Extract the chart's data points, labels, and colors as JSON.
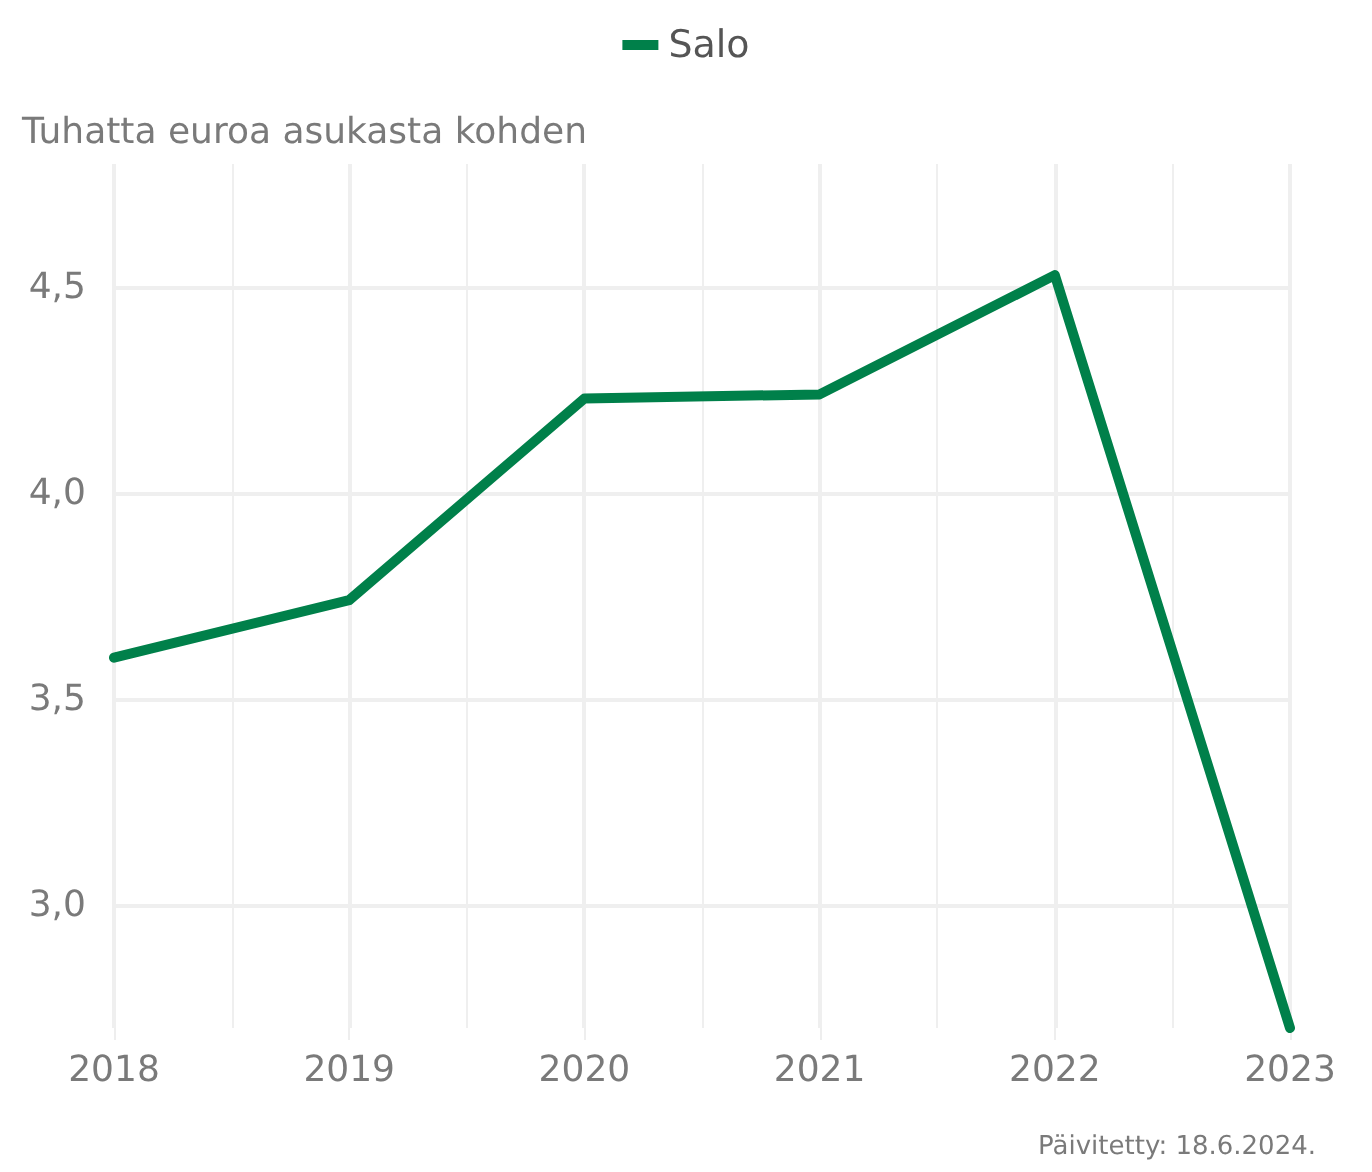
{
  "chart_data": {
    "type": "line",
    "ylabel": "Tuhatta euroa asukasta kohden",
    "x": [
      2018,
      2019,
      2020,
      2021,
      2022,
      2023
    ],
    "series": [
      {
        "name": "Salo",
        "color": "#00804a",
        "values": [
          3.6,
          3.74,
          4.23,
          4.24,
          4.53,
          2.7
        ]
      }
    ],
    "xlim": [
      2018,
      2023
    ],
    "xticks": [
      2018,
      2019,
      2020,
      2021,
      2022,
      2023
    ],
    "ylim": [
      2.7,
      4.8
    ],
    "yticks": [
      {
        "value": 3.0,
        "label": "3,0"
      },
      {
        "value": 3.5,
        "label": "3,5"
      },
      {
        "value": 4.0,
        "label": "4,0"
      },
      {
        "value": 4.5,
        "label": "4,5"
      }
    ],
    "grid": true,
    "legend": "top",
    "marker": "none",
    "line_style": "solid",
    "annotations": [
      "Päivitetty: 18.6.2024."
    ]
  }
}
